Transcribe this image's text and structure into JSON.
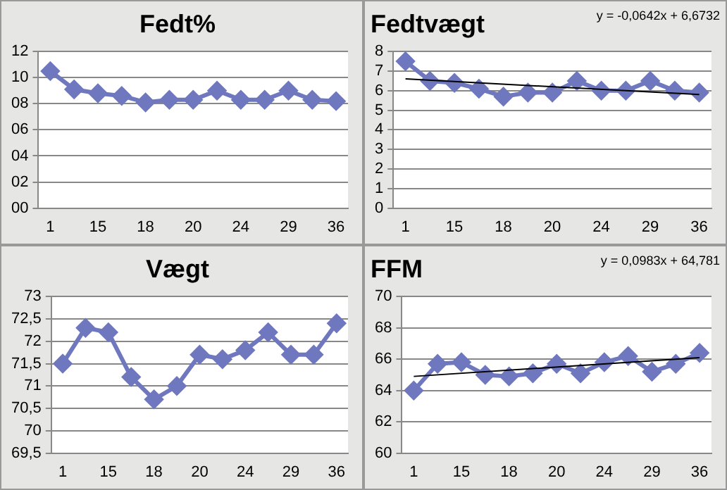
{
  "chart_data": [
    {
      "type": "line",
      "title": "Fedt%",
      "categories": [
        "1",
        null,
        "15",
        null,
        "18",
        null,
        "20",
        null,
        "24",
        null,
        "29",
        null,
        "36"
      ],
      "series": [
        {
          "color": "#6f78bf",
          "values": [
            10.5,
            9.1,
            8.8,
            8.6,
            8.1,
            8.3,
            8.3,
            9.0,
            8.3,
            8.3,
            9.0,
            8.3,
            8.2
          ]
        }
      ],
      "ylim": [
        0,
        12
      ],
      "yticks": [
        {
          "value": 0,
          "label": "00"
        },
        {
          "value": 2,
          "label": "02"
        },
        {
          "value": 4,
          "label": "04"
        },
        {
          "value": 6,
          "label": "06"
        },
        {
          "value": 8,
          "label": "08"
        },
        {
          "value": 10,
          "label": "10"
        },
        {
          "value": 12,
          "label": "12"
        }
      ],
      "grid": "y",
      "legend": false,
      "marker": "diamond"
    },
    {
      "type": "line",
      "title": "Fedtvægt",
      "categories": [
        "1",
        null,
        "15",
        null,
        "18",
        null,
        "20",
        null,
        "24",
        null,
        "29",
        null,
        "36"
      ],
      "series": [
        {
          "color": "#6f78bf",
          "values": [
            7.5,
            6.5,
            6.4,
            6.1,
            5.7,
            5.9,
            5.9,
            6.5,
            6.0,
            6.0,
            6.5,
            6.0,
            5.9
          ]
        },
        {
          "color": "#000000",
          "marker": "none",
          "values": [
            6.6,
            null,
            null,
            null,
            null,
            null,
            null,
            null,
            null,
            null,
            null,
            null,
            5.8
          ]
        }
      ],
      "ylim": [
        0,
        8
      ],
      "yticks": [
        0,
        1,
        2,
        3,
        4,
        5,
        6,
        7,
        8
      ],
      "annotations": [
        "y = -0,0642x + 6,6732"
      ],
      "grid": "y",
      "legend": false,
      "marker": "diamond"
    },
    {
      "type": "line",
      "title": "Vægt",
      "categories": [
        "1",
        null,
        "15",
        null,
        "18",
        null,
        "20",
        null,
        "24",
        null,
        "29",
        null,
        "36"
      ],
      "series": [
        {
          "color": "#6f78bf",
          "values": [
            71.5,
            72.3,
            72.2,
            71.2,
            70.7,
            71.0,
            71.7,
            71.6,
            71.8,
            72.2,
            71.7,
            71.7,
            72.4
          ]
        }
      ],
      "ylim": [
        69.5,
        73
      ],
      "yticks": [
        {
          "value": 69.5,
          "label": "69,5"
        },
        70,
        {
          "value": 70.5,
          "label": "70,5"
        },
        71,
        {
          "value": 71.5,
          "label": "71,5"
        },
        72,
        {
          "value": 72.5,
          "label": "72,5"
        },
        73
      ],
      "grid": "y",
      "legend": false,
      "marker": "diamond"
    },
    {
      "type": "line",
      "title": "FFM",
      "categories": [
        "1",
        null,
        "15",
        null,
        "18",
        null,
        "20",
        null,
        "24",
        null,
        "29",
        null,
        "36"
      ],
      "series": [
        {
          "color": "#6f78bf",
          "values": [
            64.0,
            65.7,
            65.8,
            65.0,
            64.9,
            65.1,
            65.7,
            65.1,
            65.8,
            66.2,
            65.2,
            65.7,
            66.4
          ]
        },
        {
          "color": "#000000",
          "marker": "none",
          "values": [
            64.9,
            null,
            null,
            null,
            null,
            null,
            null,
            null,
            null,
            null,
            null,
            null,
            66.1
          ]
        }
      ],
      "ylim": [
        60,
        70
      ],
      "yticks": [
        60,
        62,
        64,
        66,
        68,
        70
      ],
      "annotations": [
        "y = 0,0983x + 64,781"
      ],
      "grid": "y",
      "legend": false,
      "marker": "diamond"
    }
  ]
}
